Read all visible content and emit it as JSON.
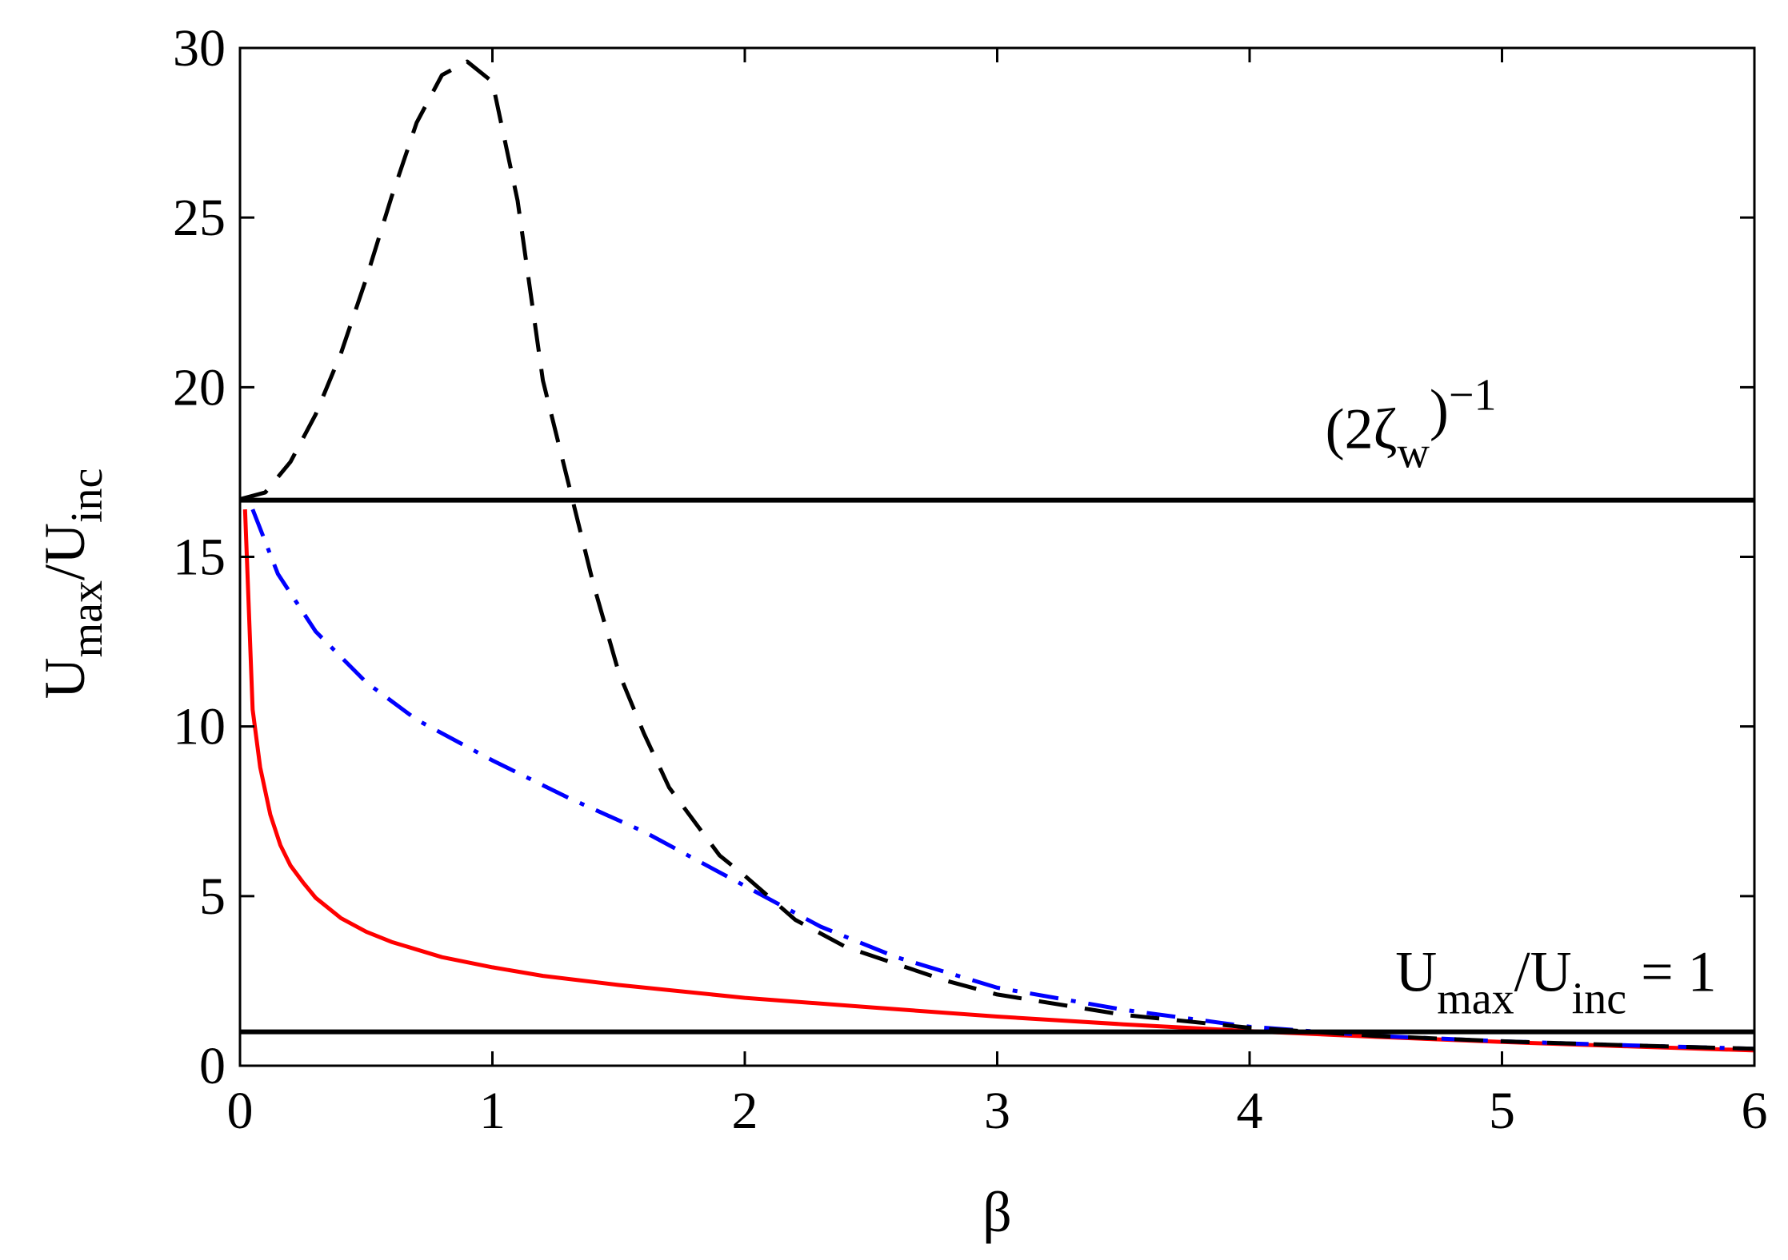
{
  "chart_data": {
    "type": "line",
    "xlabel": "β",
    "ylabel": {
      "main": "U",
      "sub1": "max",
      "mid": "/U",
      "sub2": "inc"
    },
    "xlim": [
      0,
      6
    ],
    "ylim": [
      0,
      30
    ],
    "xticks": [
      "0",
      "1",
      "2",
      "3",
      "4",
      "5",
      "6"
    ],
    "yticks": [
      "0",
      "5",
      "10",
      "15",
      "20",
      "25",
      "30"
    ],
    "grid": false,
    "legend": "none",
    "annotations": [
      {
        "id": "zeta",
        "parts": [
          "(2ζ",
          "w",
          ")",
          "−1"
        ],
        "x": 4.3,
        "y": 18.2
      },
      {
        "id": "unity",
        "parts": [
          "U",
          "max",
          "/U",
          "inc",
          " = 1"
        ],
        "x": 5.85,
        "y": 2.2
      }
    ],
    "reference_lines": [
      {
        "y": 16.67,
        "color": "#000000"
      },
      {
        "y": 1.0,
        "color": "#000000"
      }
    ],
    "series": [
      {
        "color": "#ff0000",
        "style": "solid",
        "x": [
          0.02,
          0.05,
          0.08,
          0.12,
          0.16,
          0.2,
          0.25,
          0.3,
          0.4,
          0.5,
          0.6,
          0.8,
          1.0,
          1.2,
          1.5,
          2.0,
          2.5,
          3.0,
          3.5,
          4.0,
          4.5,
          5.0,
          5.5,
          6.0
        ],
        "y": [
          16.4,
          10.5,
          8.8,
          7.4,
          6.5,
          5.9,
          5.4,
          4.95,
          4.35,
          3.95,
          3.65,
          3.2,
          2.9,
          2.65,
          2.38,
          2.0,
          1.72,
          1.45,
          1.22,
          1.02,
          0.85,
          0.7,
          0.57,
          0.45
        ]
      },
      {
        "color": "#0000ff",
        "style": "dashdot",
        "x": [
          0.05,
          0.15,
          0.3,
          0.5,
          0.7,
          1.0,
          1.3,
          1.6,
          1.8,
          2.0,
          2.3,
          2.6,
          3.0,
          3.5,
          4.0,
          4.5,
          5.0,
          5.5,
          6.0
        ],
        "y": [
          16.4,
          14.5,
          12.8,
          11.3,
          10.2,
          9.0,
          7.9,
          6.9,
          6.1,
          5.3,
          4.1,
          3.2,
          2.3,
          1.65,
          1.15,
          0.88,
          0.72,
          0.6,
          0.5
        ]
      },
      {
        "color": "#000000",
        "style": "dashed",
        "x": [
          0.0,
          0.1,
          0.2,
          0.3,
          0.4,
          0.5,
          0.6,
          0.7,
          0.8,
          0.9,
          1.0,
          1.1,
          1.2,
          1.3,
          1.4,
          1.5,
          1.6,
          1.7,
          1.8,
          1.9,
          2.0,
          2.2,
          2.4,
          2.6,
          2.8,
          3.0,
          3.5,
          4.0,
          4.5,
          5.0,
          5.5,
          6.0
        ],
        "y": [
          16.7,
          16.9,
          17.8,
          19.2,
          21.0,
          23.2,
          25.6,
          27.8,
          29.2,
          29.6,
          29.0,
          25.5,
          20.2,
          17.2,
          14.2,
          11.6,
          9.8,
          8.2,
          7.2,
          6.2,
          5.6,
          4.3,
          3.5,
          3.0,
          2.5,
          2.1,
          1.5,
          1.12,
          0.88,
          0.72,
          0.6,
          0.5
        ]
      }
    ]
  }
}
